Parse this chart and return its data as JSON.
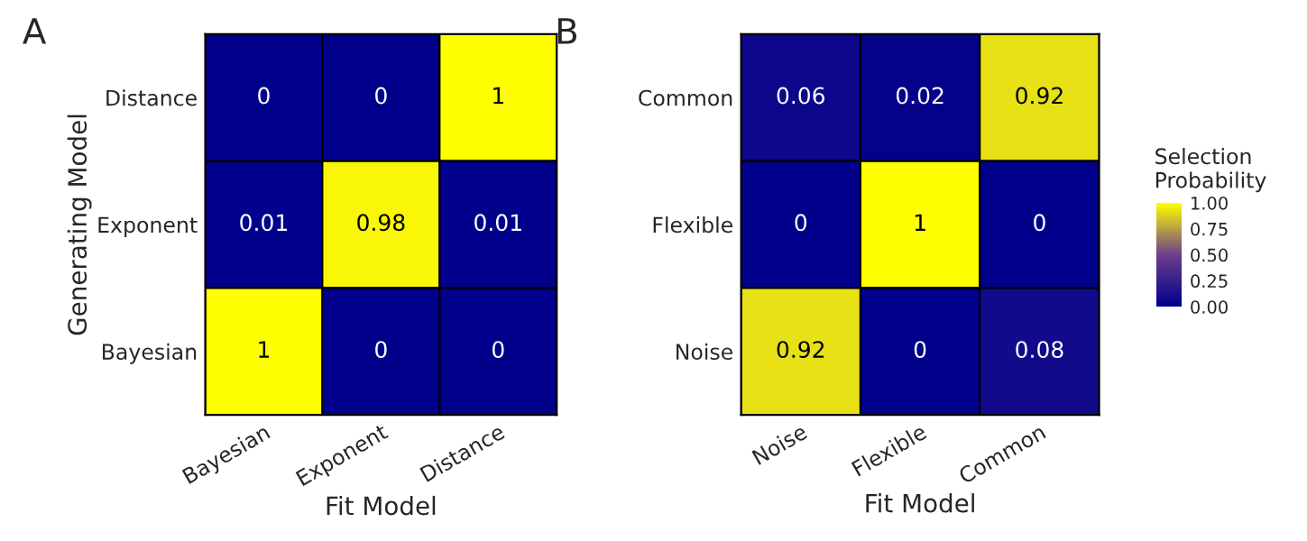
{
  "chart_data": [
    {
      "type": "heatmap",
      "title": "A",
      "xlabel": "Fit Model",
      "ylabel": "Generating Model",
      "categories": [
        "Bayesian",
        "Exponent",
        "Distance"
      ],
      "y_categories": [
        "Distance",
        "Exponent",
        "Bayesian"
      ],
      "cells": [
        [
          0,
          0,
          1
        ],
        [
          0.01,
          0.98,
          0.01
        ],
        [
          1,
          0,
          0
        ]
      ],
      "data_labels": true
    },
    {
      "type": "heatmap",
      "title": "B",
      "xlabel": "Fit Model",
      "clabel": "Selection\nProbability",
      "categories": [
        "Noise",
        "Flexible",
        "Common"
      ],
      "y_categories": [
        "Common",
        "Flexible",
        "Noise"
      ],
      "cells": [
        [
          0.06,
          0.02,
          0.92
        ],
        [
          0,
          1,
          0
        ],
        [
          0.92,
          0,
          0.08
        ]
      ],
      "clim": [
        0,
        1
      ],
      "cticks": [
        {
          "value": 0,
          "label": "0.00"
        },
        {
          "value": 0.25,
          "label": "0.25"
        },
        {
          "value": 0.5,
          "label": "0.50"
        },
        {
          "value": 0.75,
          "label": "0.75"
        },
        {
          "value": 1,
          "label": "1.00"
        }
      ],
      "data_labels": true
    }
  ]
}
